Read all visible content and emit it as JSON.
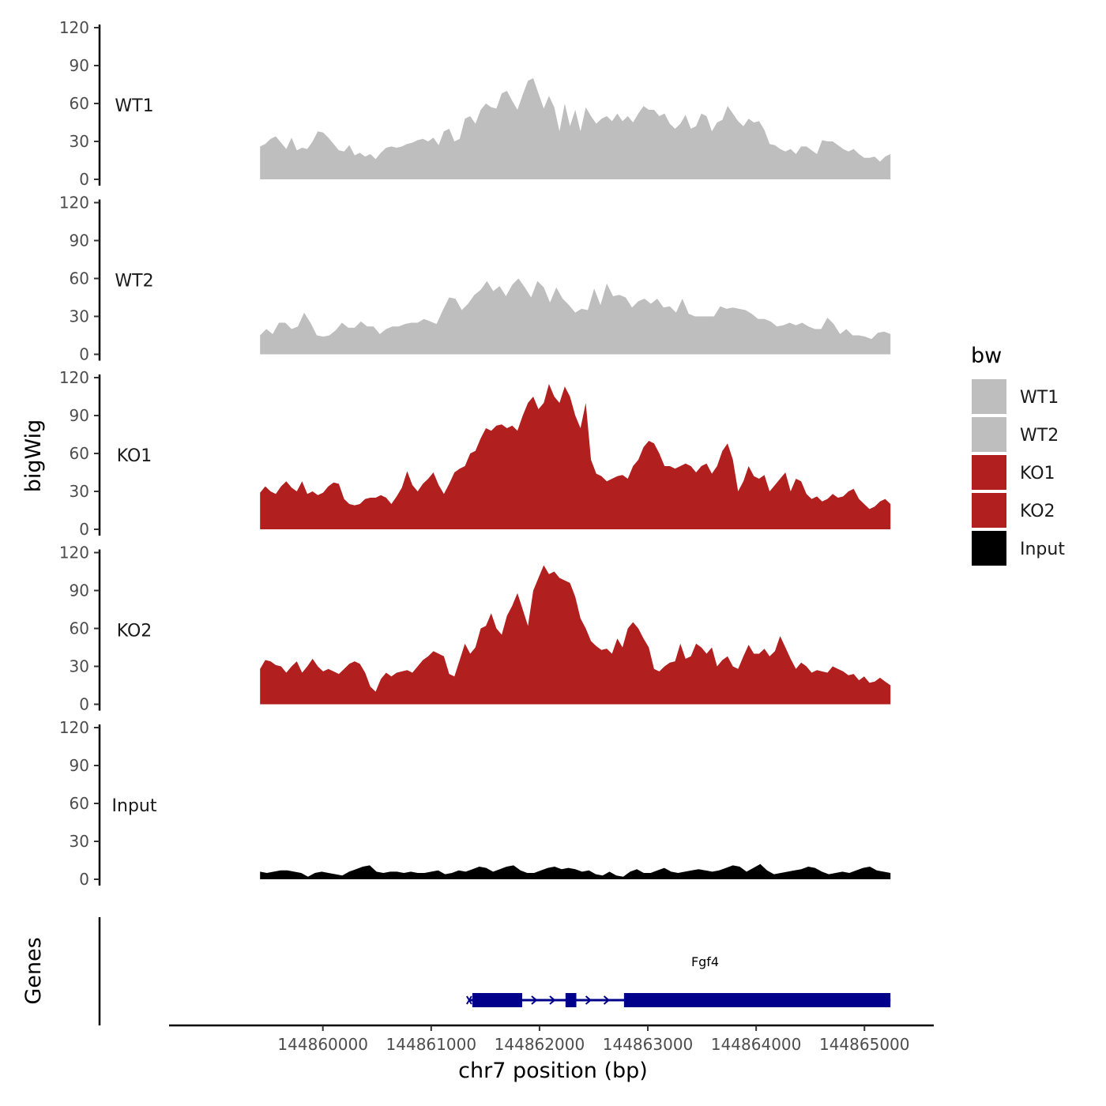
{
  "chart_data": {
    "type": "area",
    "ylabel": "bigWig",
    "xlabel": "chr7 position (bp)",
    "genes_label": "Genes",
    "xlim": [
      144858580,
      144865640
    ],
    "x_range": [
      144859420,
      144865240
    ],
    "x_ticks": [
      144860000,
      144861000,
      144862000,
      144863000,
      144864000,
      144865000
    ],
    "x_tick_labels": [
      "144860000",
      "144861000",
      "144862000",
      "144863000",
      "144864000",
      "144865000"
    ],
    "ylim": [
      0,
      120
    ],
    "y_ticks": [
      0,
      30,
      60,
      90,
      120
    ],
    "y_tick_labels": [
      "0",
      "30",
      "60",
      "90",
      "120"
    ],
    "legend": {
      "title": "bw",
      "items": [
        {
          "label": "WT1",
          "color": "#bebebe"
        },
        {
          "label": "WT2",
          "color": "#bebebe"
        },
        {
          "label": "KO1",
          "color": "#b21f1f"
        },
        {
          "label": "KO2",
          "color": "#b21f1f"
        },
        {
          "label": "Input",
          "color": "#000000"
        }
      ]
    },
    "series": [
      {
        "name": "WT1",
        "color": "#bebebe",
        "values": [
          26,
          28,
          32,
          34,
          29,
          24,
          33,
          23,
          25,
          24,
          30,
          38,
          37,
          33,
          28,
          23,
          22,
          27,
          19,
          21,
          18,
          20,
          16,
          21,
          25,
          26,
          25,
          26,
          28,
          29,
          31,
          32,
          30,
          33,
          27,
          38,
          40,
          30,
          32,
          48,
          50,
          44,
          55,
          60,
          57,
          56,
          68,
          70,
          62,
          55,
          67,
          78,
          80,
          68,
          56,
          66,
          57,
          38,
          60,
          42,
          55,
          38,
          57,
          50,
          44,
          48,
          50,
          46,
          52,
          46,
          50,
          45,
          52,
          58,
          55,
          55,
          50,
          52,
          44,
          40,
          44,
          51,
          40,
          42,
          52,
          50,
          38,
          45,
          47,
          58,
          52,
          46,
          42,
          48,
          45,
          46,
          39,
          28,
          27,
          24,
          22,
          24,
          20,
          26,
          26,
          23,
          20,
          31,
          30,
          30,
          27,
          24,
          22,
          24,
          20,
          17,
          17,
          18,
          14,
          18,
          20
        ]
      },
      {
        "name": "WT2",
        "color": "#bebebe",
        "values": [
          15,
          20,
          16,
          25,
          25,
          20,
          22,
          33,
          25,
          15,
          14,
          15,
          19,
          25,
          21,
          21,
          26,
          22,
          22,
          16,
          20,
          22,
          22,
          24,
          25,
          25,
          28,
          26,
          24,
          35,
          45,
          44,
          35,
          40,
          47,
          51,
          58,
          50,
          54,
          46,
          55,
          60,
          53,
          45,
          58,
          53,
          41,
          53,
          44,
          39,
          33,
          36,
          35,
          52,
          39,
          56,
          46,
          47,
          45,
          37,
          42,
          44,
          40,
          44,
          37,
          38,
          33,
          44,
          32,
          30,
          30,
          30,
          30,
          38,
          36,
          37,
          36,
          35,
          32,
          28,
          28,
          26,
          22,
          23,
          25,
          23,
          25,
          22,
          20,
          20,
          29,
          24,
          16,
          20,
          15,
          15,
          14,
          12,
          17,
          18,
          16
        ]
      },
      {
        "name": "KO1",
        "color": "#b21f1f",
        "values": [
          29,
          34,
          30,
          28,
          34,
          38,
          33,
          30,
          38,
          28,
          30,
          27,
          29,
          34,
          37,
          36,
          24,
          20,
          19,
          20,
          24,
          25,
          25,
          27,
          25,
          20,
          26,
          33,
          46,
          35,
          30,
          36,
          40,
          45,
          35,
          28,
          36,
          45,
          48,
          50,
          60,
          62,
          72,
          80,
          78,
          82,
          83,
          80,
          82,
          78,
          90,
          100,
          105,
          95,
          100,
          115,
          105,
          100,
          113,
          105,
          90,
          80,
          100,
          55,
          44,
          42,
          38,
          40,
          42,
          43,
          40,
          50,
          55,
          65,
          70,
          68,
          60,
          50,
          50,
          48,
          50,
          52,
          50,
          45,
          50,
          52,
          44,
          50,
          62,
          68,
          55,
          30,
          38,
          50,
          42,
          40,
          43,
          30,
          35,
          40,
          45,
          30,
          40,
          38,
          28,
          24,
          26,
          22,
          24,
          28,
          25,
          26,
          30,
          32,
          24,
          20,
          16,
          18,
          22,
          24,
          20
        ]
      },
      {
        "name": "KO2",
        "color": "#b21f1f",
        "values": [
          28,
          35,
          34,
          31,
          30,
          25,
          30,
          34,
          25,
          30,
          36,
          30,
          26,
          28,
          26,
          24,
          28,
          32,
          34,
          32,
          25,
          14,
          10,
          20,
          25,
          22,
          25,
          26,
          27,
          25,
          30,
          35,
          38,
          42,
          40,
          38,
          24,
          22,
          35,
          48,
          40,
          45,
          60,
          62,
          72,
          60,
          55,
          70,
          78,
          88,
          75,
          62,
          90,
          100,
          110,
          103,
          105,
          100,
          98,
          96,
          85,
          68,
          60,
          50,
          46,
          43,
          44,
          40,
          52,
          45,
          60,
          65,
          60,
          52,
          45,
          28,
          26,
          30,
          33,
          34,
          48,
          36,
          38,
          48,
          45,
          40,
          45,
          30,
          35,
          38,
          30,
          28,
          38,
          47,
          40,
          40,
          44,
          38,
          42,
          54,
          45,
          36,
          28,
          33,
          30,
          25,
          27,
          26,
          25,
          30,
          28,
          26,
          23,
          24,
          19,
          22,
          17,
          18,
          21,
          18,
          15
        ]
      },
      {
        "name": "Input",
        "color": "#000000",
        "values": [
          6,
          5,
          6,
          7,
          7,
          6,
          5,
          2,
          5,
          6,
          5,
          4,
          3,
          6,
          8,
          10,
          11,
          6,
          5,
          6,
          6,
          5,
          6,
          5,
          5,
          6,
          7,
          4,
          5,
          7,
          6,
          8,
          10,
          9,
          6,
          8,
          10,
          11,
          7,
          5,
          5,
          7,
          9,
          10,
          8,
          9,
          8,
          6,
          7,
          4,
          3,
          6,
          3,
          2,
          6,
          8,
          5,
          5,
          7,
          9,
          6,
          5,
          6,
          7,
          8,
          7,
          6,
          7,
          9,
          11,
          10,
          6,
          9,
          12,
          7,
          4,
          5,
          6,
          7,
          8,
          10,
          9,
          6,
          4,
          5,
          6,
          5,
          7,
          9,
          10,
          7,
          6,
          5
        ]
      }
    ],
    "genes": [
      {
        "name": "Fgf4",
        "strand": "+",
        "start": 144861380,
        "end": 144865240,
        "exons": [
          [
            144861380,
            144861840
          ],
          [
            144862240,
            144862340
          ],
          [
            144862780,
            144865240
          ]
        ]
      }
    ]
  }
}
